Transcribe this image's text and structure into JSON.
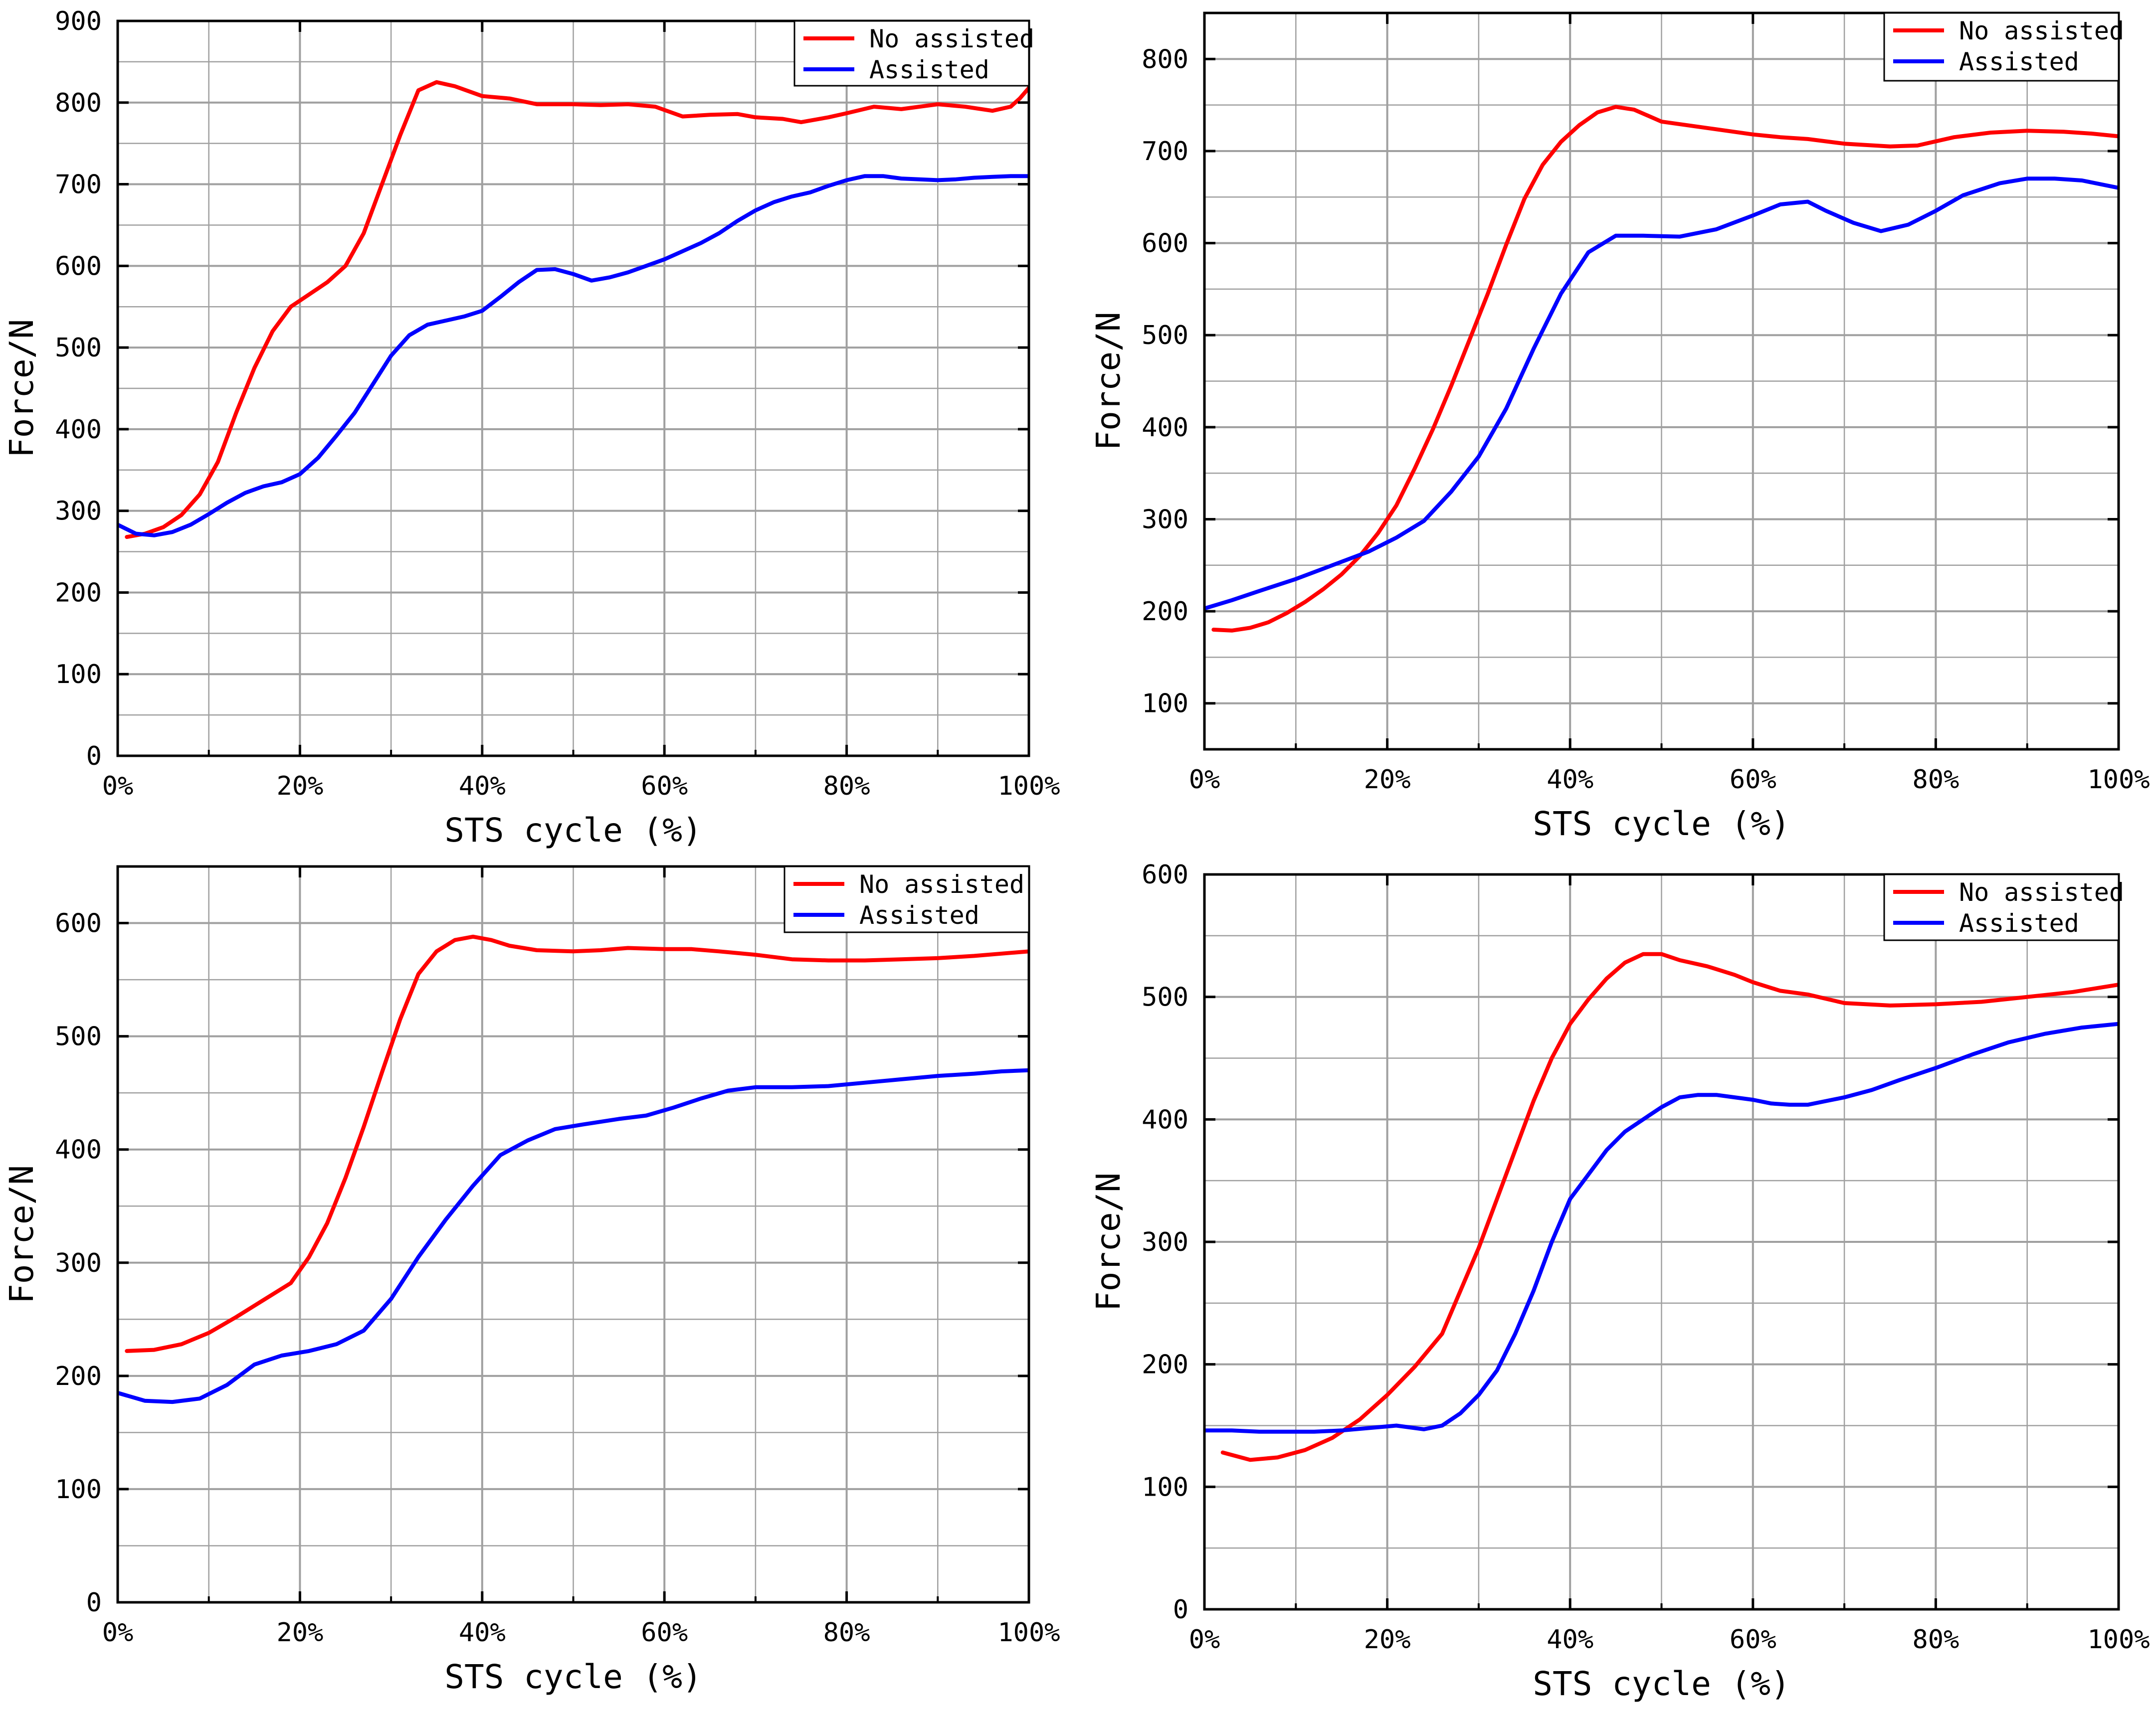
{
  "figure": {
    "line_colors": {
      "no_assisted": "#ff0000",
      "assisted": "#0000ff"
    },
    "grid_color": "#a0a0a0"
  },
  "chart_data": [
    {
      "type": "line",
      "title": "",
      "xlabel": "STS cycle (%)",
      "ylabel": "Force/N",
      "xlim": [
        0,
        100
      ],
      "ylim": [
        0,
        900
      ],
      "xticks": [
        "0%",
        "20%",
        "40%",
        "60%",
        "80%",
        "100%"
      ],
      "yticks": [
        "0",
        "100",
        "200",
        "300",
        "400",
        "500",
        "600",
        "700",
        "800",
        "900"
      ],
      "legend": "top-right",
      "grid": true,
      "series": [
        {
          "name": "No assisted",
          "color": "#ff0000",
          "x": [
            1,
            3,
            5,
            7,
            9,
            11,
            13,
            15,
            17,
            19,
            21,
            23,
            25,
            27,
            29,
            31,
            33,
            35,
            37,
            40,
            43,
            46,
            50,
            53,
            56,
            59,
            62,
            65,
            68,
            70,
            73,
            75,
            78,
            80,
            83,
            86,
            90,
            93,
            96,
            98,
            99,
            100
          ],
          "values": [
            268,
            272,
            280,
            295,
            320,
            360,
            420,
            475,
            520,
            550,
            565,
            580,
            600,
            640,
            700,
            760,
            815,
            825,
            820,
            808,
            805,
            798,
            798,
            797,
            798,
            795,
            783,
            785,
            786,
            782,
            780,
            776,
            782,
            787,
            795,
            792,
            798,
            795,
            790,
            795,
            805,
            818
          ]
        },
        {
          "name": "Assisted",
          "color": "#0000ff",
          "x": [
            0,
            2,
            4,
            6,
            8,
            10,
            12,
            14,
            16,
            18,
            20,
            22,
            24,
            26,
            28,
            30,
            32,
            34,
            36,
            38,
            40,
            42,
            44,
            46,
            48,
            50,
            52,
            54,
            56,
            58,
            60,
            62,
            64,
            66,
            68,
            70,
            72,
            74,
            76,
            78,
            80,
            82,
            84,
            86,
            88,
            90,
            92,
            94,
            96,
            98,
            100
          ],
          "values": [
            283,
            272,
            270,
            274,
            283,
            296,
            310,
            322,
            330,
            335,
            345,
            365,
            392,
            420,
            455,
            490,
            515,
            528,
            533,
            538,
            545,
            562,
            580,
            595,
            596,
            590,
            582,
            586,
            592,
            600,
            608,
            618,
            628,
            640,
            655,
            668,
            678,
            685,
            690,
            698,
            705,
            710,
            710,
            707,
            706,
            705,
            706,
            708,
            709,
            710,
            710
          ]
        }
      ]
    },
    {
      "type": "line",
      "title": "",
      "xlabel": "STS cycle (%)",
      "ylabel": "Force/N",
      "xlim": [
        0,
        100
      ],
      "ylim": [
        50,
        850
      ],
      "xticks": [
        "0%",
        "20%",
        "40%",
        "60%",
        "80%",
        "100%"
      ],
      "yticks": [
        "100",
        "200",
        "300",
        "400",
        "500",
        "600",
        "700",
        "800"
      ],
      "legend": "top-right",
      "grid": true,
      "series": [
        {
          "name": "No assisted",
          "color": "#ff0000",
          "x": [
            1,
            3,
            5,
            7,
            9,
            11,
            13,
            15,
            17,
            19,
            21,
            23,
            25,
            27,
            29,
            31,
            33,
            35,
            37,
            39,
            41,
            43,
            45,
            47,
            50,
            55,
            60,
            63,
            66,
            70,
            75,
            78,
            82,
            86,
            90,
            94,
            97,
            100
          ],
          "values": [
            180,
            179,
            182,
            188,
            198,
            210,
            224,
            240,
            260,
            285,
            315,
            355,
            398,
            445,
            495,
            545,
            598,
            648,
            685,
            710,
            728,
            742,
            748,
            745,
            732,
            725,
            718,
            715,
            713,
            708,
            705,
            706,
            715,
            720,
            722,
            721,
            719,
            716
          ]
        },
        {
          "name": "Assisted",
          "color": "#0000ff",
          "x": [
            0,
            3,
            6,
            10,
            14,
            18,
            21,
            24,
            27,
            30,
            33,
            36,
            39,
            42,
            45,
            48,
            52,
            56,
            60,
            63,
            66,
            68,
            71,
            74,
            77,
            80,
            83,
            87,
            90,
            93,
            96,
            100
          ],
          "values": [
            203,
            212,
            222,
            235,
            250,
            265,
            280,
            298,
            330,
            368,
            420,
            485,
            545,
            590,
            608,
            608,
            607,
            615,
            630,
            642,
            645,
            635,
            622,
            613,
            620,
            635,
            652,
            665,
            670,
            670,
            668,
            660
          ]
        }
      ]
    },
    {
      "type": "line",
      "title": "",
      "xlabel": "STS cycle (%)",
      "ylabel": "Force/N",
      "xlim": [
        0,
        100
      ],
      "ylim": [
        0,
        650
      ],
      "xticks": [
        "0%",
        "20%",
        "40%",
        "60%",
        "80%",
        "100%"
      ],
      "yticks": [
        "0",
        "100",
        "200",
        "300",
        "400",
        "500",
        "600"
      ],
      "legend": "top-right",
      "grid": true,
      "series": [
        {
          "name": "No assisted",
          "color": "#ff0000",
          "x": [
            1,
            4,
            7,
            10,
            13,
            16,
            19,
            21,
            23,
            25,
            27,
            29,
            31,
            33,
            35,
            37,
            39,
            41,
            43,
            46,
            50,
            53,
            56,
            60,
            63,
            66,
            70,
            74,
            78,
            82,
            86,
            90,
            94,
            97,
            100
          ],
          "values": [
            222,
            223,
            228,
            238,
            252,
            267,
            282,
            305,
            335,
            375,
            420,
            468,
            515,
            555,
            575,
            585,
            588,
            585,
            580,
            576,
            575,
            576,
            578,
            577,
            577,
            575,
            572,
            568,
            567,
            567,
            568,
            569,
            571,
            573,
            575
          ]
        },
        {
          "name": "Assisted",
          "color": "#0000ff",
          "x": [
            0,
            3,
            6,
            9,
            12,
            15,
            18,
            21,
            24,
            27,
            30,
            33,
            36,
            39,
            42,
            45,
            48,
            51,
            55,
            58,
            61,
            64,
            67,
            70,
            74,
            78,
            82,
            86,
            90,
            94,
            97,
            100
          ],
          "values": [
            185,
            178,
            177,
            180,
            192,
            210,
            218,
            222,
            228,
            240,
            268,
            305,
            338,
            368,
            395,
            408,
            418,
            422,
            427,
            430,
            437,
            445,
            452,
            455,
            455,
            456,
            459,
            462,
            465,
            467,
            469,
            470
          ]
        }
      ]
    },
    {
      "type": "line",
      "title": "",
      "xlabel": "STS cycle (%)",
      "ylabel": "Force/N",
      "xlim": [
        0,
        100
      ],
      "ylim": [
        0,
        600
      ],
      "xticks": [
        "0%",
        "20%",
        "40%",
        "60%",
        "80%",
        "100%"
      ],
      "yticks": [
        "0",
        "100",
        "200",
        "300",
        "400",
        "500",
        "600"
      ],
      "legend": "top-right",
      "grid": true,
      "series": [
        {
          "name": "No assisted",
          "color": "#ff0000",
          "x": [
            2,
            5,
            8,
            11,
            14,
            17,
            20,
            23,
            26,
            28,
            30,
            32,
            34,
            36,
            38,
            40,
            42,
            44,
            46,
            48,
            50,
            52,
            55,
            58,
            60,
            63,
            66,
            70,
            75,
            80,
            85,
            90,
            95,
            100
          ],
          "values": [
            128,
            122,
            124,
            130,
            140,
            155,
            175,
            198,
            225,
            260,
            295,
            335,
            375,
            415,
            450,
            478,
            498,
            515,
            528,
            535,
            535,
            530,
            525,
            518,
            512,
            505,
            502,
            495,
            493,
            494,
            496,
            500,
            504,
            510
          ]
        },
        {
          "name": "Assisted",
          "color": "#0000ff",
          "x": [
            0,
            3,
            6,
            9,
            12,
            15,
            18,
            21,
            24,
            26,
            28,
            30,
            32,
            34,
            36,
            38,
            40,
            42,
            44,
            46,
            48,
            50,
            52,
            54,
            56,
            58,
            60,
            62,
            64,
            66,
            68,
            70,
            73,
            76,
            80,
            84,
            88,
            92,
            96,
            100
          ],
          "values": [
            146,
            146,
            145,
            145,
            145,
            146,
            148,
            150,
            147,
            150,
            160,
            175,
            195,
            225,
            260,
            300,
            335,
            355,
            375,
            390,
            400,
            410,
            418,
            420,
            420,
            418,
            416,
            413,
            412,
            412,
            415,
            418,
            424,
            432,
            442,
            453,
            463,
            470,
            475,
            478
          ]
        }
      ]
    }
  ]
}
